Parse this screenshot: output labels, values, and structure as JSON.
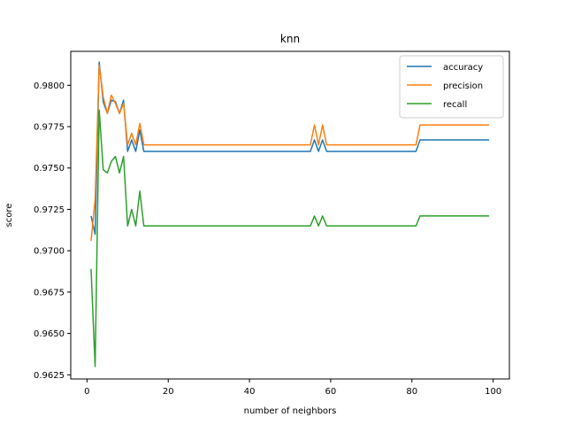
{
  "chart_data": {
    "type": "line",
    "title": "knn",
    "xlabel": "number of neighbors",
    "ylabel": "score",
    "xlim": [
      -4,
      104
    ],
    "ylim": [
      0.96225,
      0.98205
    ],
    "xticks": [
      0,
      20,
      40,
      60,
      80,
      100
    ],
    "yticks": [
      0.9625,
      0.965,
      0.9675,
      0.97,
      0.9725,
      0.975,
      0.9775,
      0.98
    ],
    "ytick_labels": [
      "0.9625",
      "0.9650",
      "0.9675",
      "0.9700",
      "0.9725",
      "0.9750",
      "0.9775",
      "0.9800"
    ],
    "legend_position": "top-right",
    "grid": false,
    "series": [
      {
        "name": "accuracy",
        "color": "#1f77b4",
        "points": [
          [
            1,
            0.9721
          ],
          [
            2,
            0.971
          ],
          [
            3,
            0.9814
          ],
          [
            4,
            0.979
          ],
          [
            5,
            0.9783
          ],
          [
            6,
            0.9791
          ],
          [
            7,
            0.979
          ],
          [
            8,
            0.9783
          ],
          [
            9,
            0.9791
          ],
          [
            10,
            0.976
          ],
          [
            11,
            0.9767
          ],
          [
            12,
            0.976
          ],
          [
            13,
            0.9773
          ],
          [
            14,
            0.976
          ],
          [
            55,
            0.976
          ],
          [
            56,
            0.9767
          ],
          [
            57,
            0.976
          ],
          [
            58,
            0.9767
          ],
          [
            59,
            0.976
          ],
          [
            81,
            0.976
          ],
          [
            82,
            0.9767
          ],
          [
            99,
            0.9767
          ]
        ]
      },
      {
        "name": "precision",
        "color": "#ff7f0e",
        "points": [
          [
            1,
            0.9706
          ],
          [
            2,
            0.9731
          ],
          [
            3,
            0.9812
          ],
          [
            4,
            0.9793
          ],
          [
            5,
            0.9783
          ],
          [
            6,
            0.9794
          ],
          [
            7,
            0.9789
          ],
          [
            8,
            0.9783
          ],
          [
            9,
            0.9789
          ],
          [
            10,
            0.9764
          ],
          [
            11,
            0.9771
          ],
          [
            12,
            0.9764
          ],
          [
            13,
            0.9777
          ],
          [
            14,
            0.9764
          ],
          [
            55,
            0.9764
          ],
          [
            56,
            0.9776
          ],
          [
            57,
            0.9764
          ],
          [
            58,
            0.9776
          ],
          [
            59,
            0.9764
          ],
          [
            81,
            0.9764
          ],
          [
            82,
            0.9776
          ],
          [
            99,
            0.9776
          ]
        ]
      },
      {
        "name": "recall",
        "color": "#2ca02c",
        "points": [
          [
            1,
            0.9689
          ],
          [
            2,
            0.963
          ],
          [
            3,
            0.9785
          ],
          [
            4,
            0.9749
          ],
          [
            5,
            0.9747
          ],
          [
            6,
            0.9754
          ],
          [
            7,
            0.9757
          ],
          [
            8,
            0.9747
          ],
          [
            9,
            0.9757
          ],
          [
            10,
            0.9715
          ],
          [
            11,
            0.9725
          ],
          [
            12,
            0.9715
          ],
          [
            13,
            0.9736
          ],
          [
            14,
            0.9715
          ],
          [
            55,
            0.9715
          ],
          [
            56,
            0.9721
          ],
          [
            57,
            0.9715
          ],
          [
            58,
            0.9721
          ],
          [
            59,
            0.9715
          ],
          [
            81,
            0.9715
          ],
          [
            82,
            0.9721
          ],
          [
            99,
            0.9721
          ]
        ]
      }
    ]
  }
}
